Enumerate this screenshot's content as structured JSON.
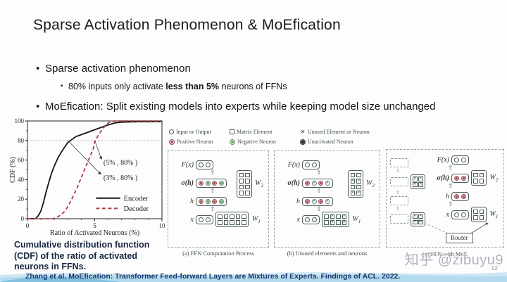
{
  "slide": {
    "title": "Sparse Activation Phenomenon & MoEfication",
    "bullets": {
      "b1": "Sparse activation phenomenon",
      "b1_sub_pre": "80% inputs only activate ",
      "b1_sub_bold": "less than 5%",
      "b1_sub_post": " neurons of FFNs",
      "b2": "MoEfication: Split existing models into experts while keeping model size unchanged"
    },
    "caption": "Cumulative distribution function (CDF) of the ratio of activated neurons in FFNs.",
    "citation": "Zhang et al. MoEfication: Transformer Feed-forward Layers are Mixtures of Experts. Findings of ACL. 2022.",
    "watermark": "知乎 @zibuyu9",
    "page_number": "12"
  },
  "chart_data": {
    "type": "line",
    "title": "",
    "xlabel": "Ratio of Activated Neurons (%)",
    "ylabel": "CDF (%)",
    "xlim": [
      0,
      10
    ],
    "ylim": [
      0,
      100
    ],
    "xticks": [
      0,
      5,
      10
    ],
    "yticks": [
      0,
      20,
      40,
      60,
      80,
      100
    ],
    "xminor": [
      1,
      2,
      3,
      4,
      6,
      7,
      8,
      9
    ],
    "yminor": [
      10,
      30,
      50,
      70,
      90
    ],
    "gridline_y": 80,
    "grid": "dashed horizontal line at y=80 only",
    "legend_position": "lower right",
    "series": [
      {
        "name": "Encoder",
        "style": "solid",
        "color": "#141414",
        "x": [
          0,
          0.6,
          0.8,
          1.0,
          1.2,
          1.4,
          1.6,
          1.8,
          2.0,
          2.3,
          2.6,
          3.0,
          3.2,
          3.6,
          4.0,
          4.5,
          5.0,
          5.5,
          6.0,
          6.5,
          7.0,
          8.0,
          10.0
        ],
        "y": [
          0,
          0,
          3,
          8,
          17,
          28,
          38,
          47,
          54,
          63,
          70,
          78,
          80,
          84,
          86,
          88.5,
          91,
          93.5,
          96,
          98,
          98.8,
          99.2,
          99.5
        ]
      },
      {
        "name": "Decoder",
        "style": "dashed",
        "color": "#a93a44",
        "x": [
          0,
          1.9,
          2.2,
          2.5,
          2.8,
          3.1,
          3.4,
          3.7,
          4.0,
          4.3,
          4.6,
          4.9,
          5.0,
          5.3,
          5.6,
          5.9,
          6.2,
          6.5,
          10.0
        ],
        "y": [
          0,
          0,
          1.5,
          4,
          8,
          15,
          23,
          32,
          42,
          52,
          62,
          72,
          79,
          86,
          92,
          97,
          99.5,
          100,
          100
        ]
      }
    ],
    "annotations": [
      {
        "label": "(5% , 80% )",
        "point_x": 5,
        "point_y": 80,
        "arrow_x": 5.5,
        "arrow_y": 61,
        "label_x": 5.65,
        "label_y": 57.5
      },
      {
        "label": "(3% , 80% )",
        "point_x": 3,
        "point_y": 80,
        "arrow_x": 5.45,
        "arrow_y": 45.5,
        "label_x": 5.65,
        "label_y": 42
      }
    ],
    "legend": {
      "line_x1": 5.1,
      "line_x2": 6.9,
      "text_x": 7.15,
      "y": [
        21,
        10.5
      ]
    }
  },
  "diagram": {
    "legend": [
      {
        "marker": "io",
        "label": "Input or Output"
      },
      {
        "marker": "sq",
        "label": "Matrix Element"
      },
      {
        "marker": "x",
        "label": "Unused Element or Neuron"
      },
      {
        "marker": "pos",
        "label": "Positive Neuron"
      },
      {
        "marker": "neg",
        "label": "Negative Neuron"
      },
      {
        "marker": "un",
        "label": "Unactivated Neuron"
      }
    ],
    "labels": {
      "fx": "F(x)",
      "sigma": "σ(h)",
      "h": "h",
      "x": "x",
      "w": "W",
      "w1_sub": "1",
      "w2_sub": "2"
    },
    "panels": [
      {
        "caption": "(a) FFN Computation Process",
        "fx": [
          "io",
          "io"
        ],
        "sigma": [
          "pos",
          "neg",
          "pos",
          "neg"
        ],
        "h": [
          "pos",
          "neg",
          "pos",
          "neg"
        ],
        "x": [
          "io",
          "io"
        ],
        "w2_cols": 2,
        "w2": [
          "sq",
          "sq",
          "sq",
          "sq",
          "sq",
          "sq",
          "sq",
          "sq"
        ],
        "w1_cols": 5,
        "w1": [
          "sq",
          "sq",
          "sq",
          "sq",
          "sq",
          "sq",
          "sq",
          "sq",
          "sq",
          "sq"
        ]
      },
      {
        "caption": "(b) Unused elements and neurons",
        "fx": [
          "io",
          "io"
        ],
        "sigma": [
          "pos",
          "x",
          "pos",
          "x"
        ],
        "h": [
          "pos",
          "x",
          "pos",
          "x"
        ],
        "x": [
          "io",
          "io"
        ],
        "w2_cols": 2,
        "w2": [
          "sq",
          "sq",
          "x",
          "x",
          "sq",
          "sq",
          "x",
          "x"
        ],
        "w1_cols": 4,
        "w1": [
          "sq",
          "x",
          "sq",
          "x",
          "sq",
          "x",
          "sq",
          "x"
        ]
      },
      {
        "caption": "(c) FFN with MoE",
        "fx": [
          "io",
          "io"
        ],
        "sigma": [
          "pos",
          "pos"
        ],
        "h": [
          "pos",
          "pos"
        ],
        "x": [
          "io",
          "io"
        ],
        "w2_cols": 2,
        "w2": [
          "sq",
          "sq",
          "sq",
          "sq"
        ],
        "w1_cols": 2,
        "w1": [
          "sq",
          "sq",
          "sq",
          "sq"
        ],
        "router": "Router",
        "expert_matrix": [
          "x",
          "x",
          "x",
          "x"
        ]
      }
    ]
  }
}
